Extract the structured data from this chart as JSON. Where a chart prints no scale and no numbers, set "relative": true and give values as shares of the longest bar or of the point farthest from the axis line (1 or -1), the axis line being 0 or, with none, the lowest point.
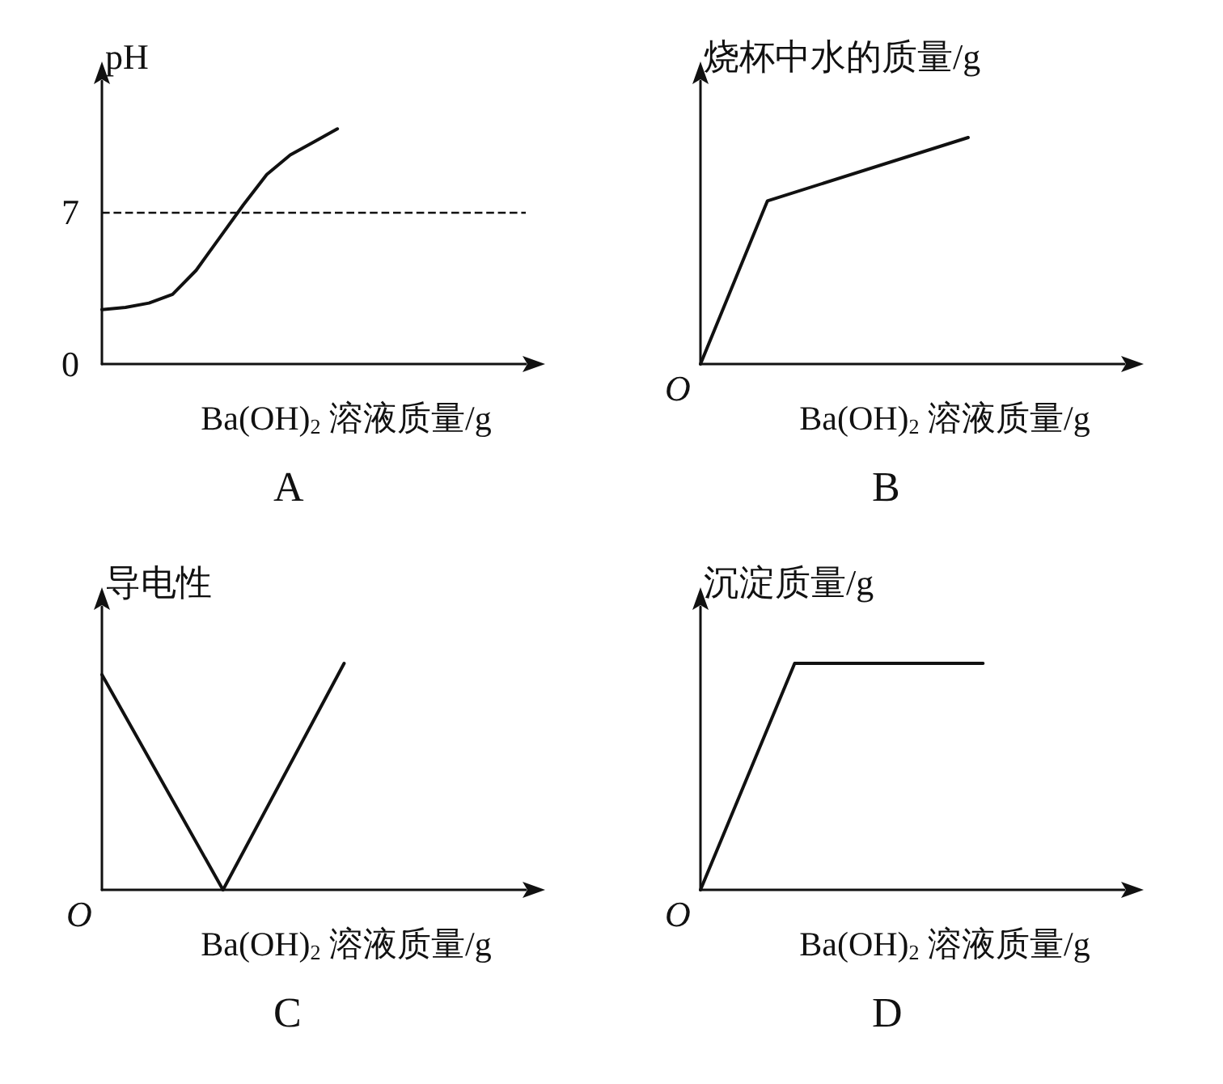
{
  "chart_data": [
    {
      "type": "line",
      "title": "A",
      "xlabel": "Ba(OH)$_{2}$ 溶液质量/g",
      "ylabel": "pH",
      "categories": [
        null,
        null,
        null,
        null,
        null,
        null,
        null,
        null,
        null,
        null,
        null,
        null,
        null,
        null,
        null,
        null,
        null,
        null,
        null
      ],
      "values": [
        2.5,
        2.6,
        2.8,
        3.2,
        4.3,
        5.8,
        7.3,
        8.7,
        9.6,
        10.2,
        10.8,
        null,
        null,
        null,
        null,
        null,
        null,
        null,
        null
      ],
      "color": "#111111",
      "ylim": [
        0,
        13
      ],
      "yticks": [
        0,
        7
      ],
      "tick_labels": "y",
      "ref_lines": [
        {
          "axis": "y",
          "value": 7,
          "line_style": "dashed"
        }
      ]
    },
    {
      "type": "line",
      "title": "B",
      "xlabel": "Ba(OH)$_{2}$ 溶液质量/g",
      "ylabel": "烧杯中水的质量/g",
      "annotations": [
        "O"
      ],
      "relative": true,
      "categories": [
        null,
        null,
        null,
        null,
        null,
        null,
        null,
        null,
        null,
        null,
        null,
        null,
        null,
        null,
        null,
        null,
        null,
        null,
        null,
        null
      ],
      "values": [
        0,
        null,
        null,
        0.72,
        null,
        null,
        null,
        null,
        null,
        null,
        null,
        null,
        1,
        null,
        null,
        null,
        null,
        null,
        null,
        null
      ],
      "color": "#111111",
      "tick_labels": false
    },
    {
      "type": "line",
      "title": "C",
      "xlabel": "Ba(OH)$_{2}$ 溶液质量/g",
      "ylabel": "导电性",
      "annotations": [
        "O"
      ],
      "relative": true,
      "categories": [
        null,
        null,
        null,
        null,
        null,
        null,
        null,
        null
      ],
      "values": [
        0.95,
        null,
        0,
        null,
        1,
        null,
        null,
        null
      ],
      "color": "#111111",
      "tick_labels": false
    },
    {
      "type": "line",
      "title": "D",
      "xlabel": "Ba(OH)$_{2}$ 溶液质量/g",
      "ylabel": "沉淀质量/g",
      "annotations": [
        "O"
      ],
      "relative": true,
      "categories": [
        null,
        null,
        null,
        null,
        null,
        null,
        null,
        null,
        null,
        null
      ],
      "values": [
        0,
        null,
        1,
        null,
        null,
        null,
        1,
        null,
        null,
        null
      ],
      "color": "#111111",
      "tick_labels": false
    }
  ]
}
